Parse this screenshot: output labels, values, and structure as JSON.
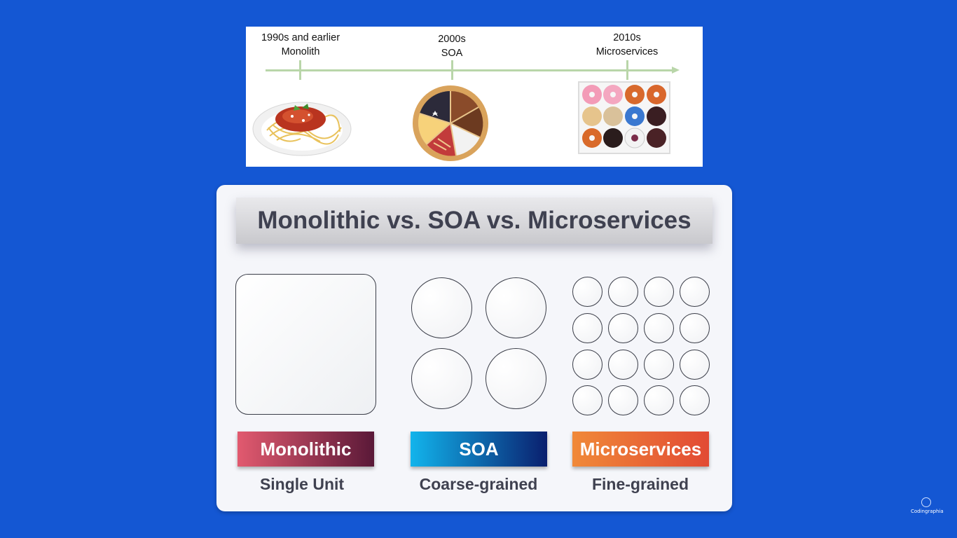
{
  "timeline": {
    "eras": [
      {
        "period": "1990s and earlier",
        "name": "Monolith"
      },
      {
        "period": "2000s",
        "name": "SOA"
      },
      {
        "period": "2010s",
        "name": "Microservices"
      }
    ]
  },
  "card": {
    "title": "Monolithic vs. SOA vs. Microservices",
    "columns": [
      {
        "tag": "Monolithic",
        "description": "Single Unit"
      },
      {
        "tag": "SOA",
        "description": "Coarse-grained"
      },
      {
        "tag": "Microservices",
        "description": "Fine-grained"
      }
    ]
  },
  "watermark": {
    "text": "Codingraphia"
  },
  "colors": {
    "background": "#1457d3",
    "monolithic_tag": "#e25a6f",
    "soa_tag": "#12b4ec",
    "microservices_tag": "#f08938"
  }
}
